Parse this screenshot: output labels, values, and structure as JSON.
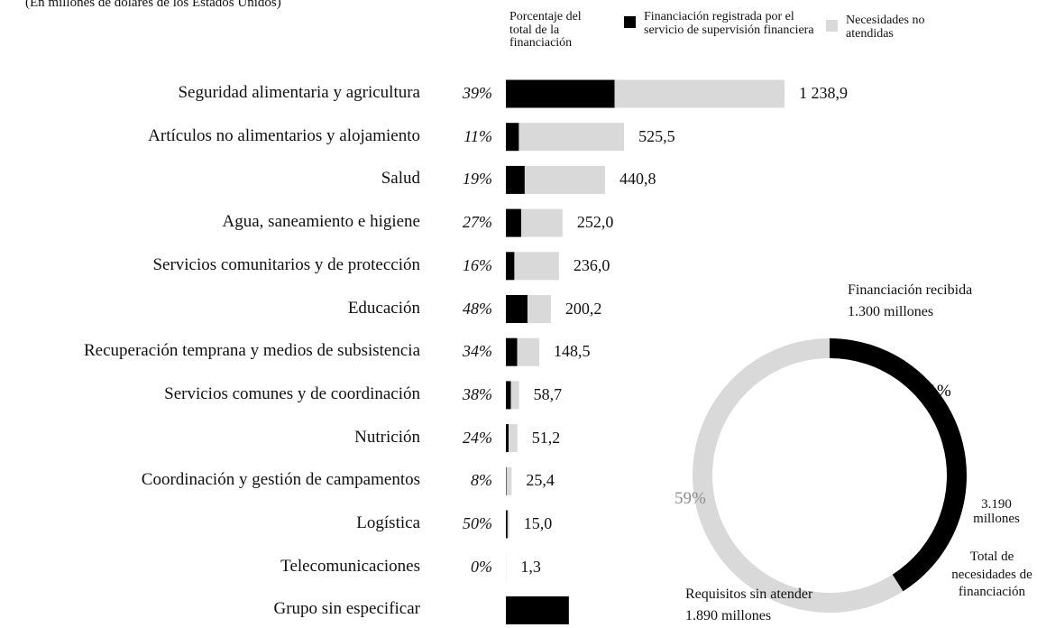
{
  "chart_data": [
    {
      "type": "stacked-hbar",
      "subtitle": "(En millones de dólares de los Estados Unidos)",
      "percent_header": "Porcentaje del total de la financiación",
      "categories": [
        "Seguridad alimentaria y agricultura",
        "Artículos no alimentarios y alojamiento",
        "Salud",
        "Agua, saneamiento e higiene",
        "Servicios comunitarios y de protección",
        "Educación",
        "Recuperación temprana y medios de subsistencia",
        "Servicios comunes y de coordinación",
        "Nutrición",
        "Coordinación y gestión de campamentos",
        "Logística",
        "Telecomunicaciones",
        "Grupo sin especificar"
      ],
      "percentages": [
        39,
        11,
        19,
        27,
        16,
        48,
        34,
        38,
        24,
        8,
        50,
        0,
        null
      ],
      "percentage_labels": [
        "39%",
        "11%",
        "19%",
        "27%",
        "16%",
        "48%",
        "34%",
        "38%",
        "24%",
        "8%",
        "50%",
        "0%",
        null
      ],
      "series": [
        {
          "name": "Financiación registrada por el servicio de supervisión financiera",
          "color": "#000000",
          "values": [
            483.2,
            57.8,
            83.8,
            68.0,
            37.8,
            96.1,
            50.5,
            22.3,
            12.3,
            2.0,
            7.5,
            0,
            280
          ]
        },
        {
          "name": "Necesidades no atendidas",
          "color": "#d9d9d9",
          "values": [
            755.7,
            467.7,
            357.0,
            184.0,
            198.2,
            104.1,
            98.0,
            36.4,
            38.9,
            23.4,
            7.5,
            1.3,
            null
          ]
        }
      ],
      "totals": [
        1238.9,
        525.5,
        440.8,
        252.0,
        236.0,
        200.2,
        148.5,
        58.7,
        51.2,
        25.4,
        15.0,
        1.3,
        null
      ],
      "total_labels": [
        "1 238,9",
        "525,5",
        "440,8",
        "252,0",
        "236,0",
        "200,2",
        "148,5",
        "58,7",
        "51,2",
        "25,4",
        "15,0",
        "1,3",
        null
      ],
      "xlim": [
        0,
        1238.9
      ]
    },
    {
      "type": "donut",
      "categories": [
        "Financiación recibida",
        "Requisitos sin atender"
      ],
      "amount_labels": [
        "1.300 millones",
        "1.890 millones"
      ],
      "values": [
        41,
        59
      ],
      "value_labels": [
        "41%",
        "59%"
      ],
      "colors": [
        "#000000",
        "#d9d9d9"
      ],
      "total_amount": "3.190 millones",
      "total_caption": "Total de necesidades de financiación"
    }
  ]
}
